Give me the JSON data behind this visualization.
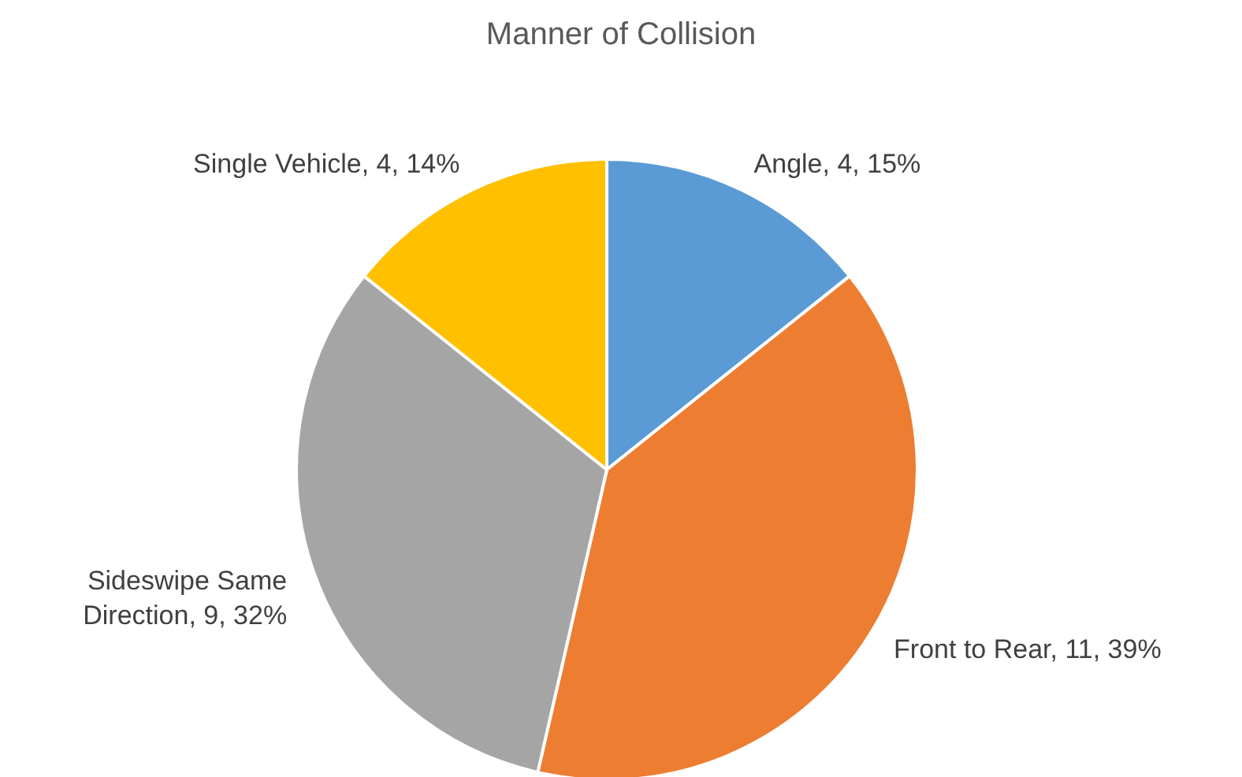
{
  "chart_data": {
    "type": "pie",
    "title": "Manner of Collision",
    "categories": [
      "Angle",
      "Front to Rear",
      "Sideswipe Same Direction",
      "Single Vehicle"
    ],
    "values": [
      4,
      11,
      9,
      4
    ],
    "value_labels": [
      "4, 15%",
      "11, 39%",
      "9, 32%",
      "4, 14%"
    ],
    "colors": [
      "#5b9bd5",
      "#ed7d31",
      "#a5a5a5",
      "#ffc000"
    ],
    "legend": false
  }
}
